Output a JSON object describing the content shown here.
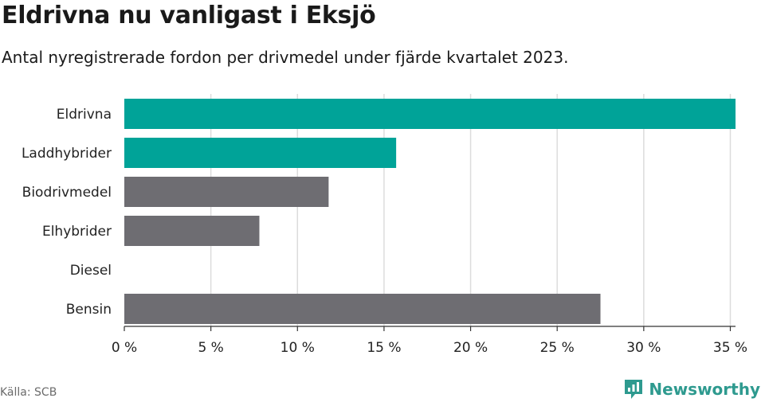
{
  "header": {
    "title": "Eldrivna nu vanligast i Eksjö",
    "subtitle": "Antal nyregistrerade fordon per drivmedel under fjärde kvartalet 2023."
  },
  "footer": {
    "source": "Källa: SCB",
    "brand": "Newsworthy",
    "brand_icon": "newsworthy-logo-icon"
  },
  "colors": {
    "highlight": "#00a398",
    "default": "#6e6d72",
    "grid": "#dcdcdc",
    "axis": "#333333"
  },
  "chart_data": {
    "type": "bar",
    "orientation": "horizontal",
    "categories": [
      "Eldrivna",
      "Laddhybrider",
      "Biodrivmedel",
      "Elhybrider",
      "Diesel",
      "Bensin"
    ],
    "values": [
      35.3,
      15.7,
      11.8,
      7.8,
      0,
      27.5
    ],
    "highlighted": [
      true,
      true,
      false,
      false,
      false,
      false
    ],
    "xlim": [
      0,
      35.3
    ],
    "xticks": [
      0,
      5,
      10,
      15,
      20,
      25,
      30,
      35
    ],
    "xtick_labels": [
      "0 %",
      "5 %",
      "10 %",
      "15 %",
      "20 %",
      "25 %",
      "30 %",
      "35 %"
    ],
    "xlabel": "",
    "ylabel": "",
    "grid": true
  }
}
